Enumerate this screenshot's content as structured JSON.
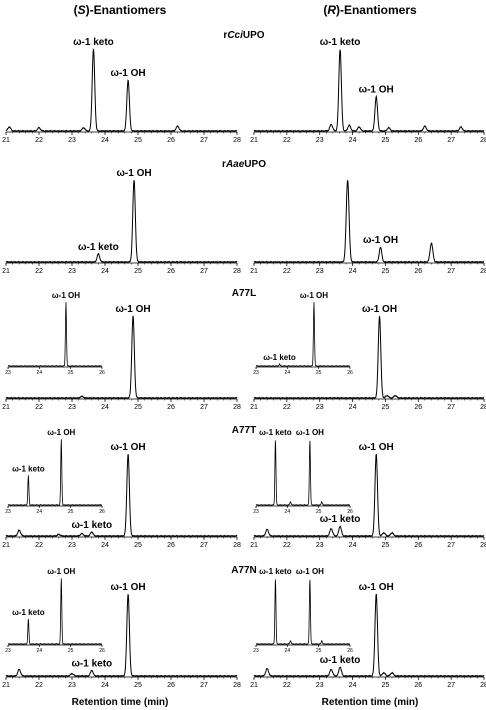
{
  "figure": {
    "left_title": "(S)-Enantiomers",
    "right_title": "(R)-Enantiomers",
    "xlabel": "Retention time (min)",
    "row_labels": [
      "rCciUPO",
      "rAaeUPO",
      "A77L",
      "A77T",
      "A77N"
    ]
  },
  "chart_data": [
    {
      "type": "line",
      "panel": "rCciUPO (S)",
      "x_range": [
        21,
        28
      ],
      "x_ticks": [
        21,
        22,
        23,
        24,
        25,
        26,
        27,
        28
      ],
      "peaks": [
        {
          "x": 21.1,
          "h": 0.05
        },
        {
          "x": 22.0,
          "h": 0.04
        },
        {
          "x": 23.35,
          "h": 0.04
        },
        {
          "x": 23.65,
          "h": 1.0,
          "label": "ω-1 keto"
        },
        {
          "x": 24.7,
          "h": 0.62,
          "label": "ω-1 OH"
        },
        {
          "x": 26.2,
          "h": 0.06
        }
      ]
    },
    {
      "type": "line",
      "panel": "rCciUPO (R)",
      "x_range": [
        21,
        28
      ],
      "x_ticks": [
        21,
        22,
        23,
        24,
        25,
        26,
        27,
        28
      ],
      "peaks": [
        {
          "x": 23.35,
          "h": 0.08
        },
        {
          "x": 23.62,
          "h": 1.0,
          "label": "ω-1 keto"
        },
        {
          "x": 23.9,
          "h": 0.07
        },
        {
          "x": 24.2,
          "h": 0.05
        },
        {
          "x": 24.72,
          "h": 0.42,
          "label": "ω-1 OH"
        },
        {
          "x": 25.1,
          "h": 0.04
        },
        {
          "x": 26.2,
          "h": 0.06
        },
        {
          "x": 27.3,
          "h": 0.05
        }
      ]
    },
    {
      "type": "line",
      "panel": "rAaeUPO (S)",
      "x_range": [
        21,
        28
      ],
      "x_ticks": [
        21,
        22,
        23,
        24,
        25,
        26,
        27,
        28
      ],
      "peaks": [
        {
          "x": 23.8,
          "h": 0.1,
          "label": "ω-1 keto"
        },
        {
          "x": 24.88,
          "h": 1.0,
          "label": "ω-1 OH"
        }
      ]
    },
    {
      "type": "line",
      "panel": "rAaeUPO (R)",
      "x_range": [
        21,
        28
      ],
      "x_ticks": [
        21,
        22,
        23,
        24,
        25,
        26,
        27,
        28
      ],
      "peaks": [
        {
          "x": 23.85,
          "h": 1.0
        },
        {
          "x": 24.85,
          "h": 0.18,
          "label": "ω-1 OH"
        },
        {
          "x": 26.4,
          "h": 0.23
        }
      ]
    },
    {
      "type": "line",
      "panel": "A77L (S)",
      "x_range": [
        21,
        28
      ],
      "x_ticks": [
        21,
        22,
        23,
        24,
        25,
        26,
        27,
        28
      ],
      "peaks": [
        {
          "x": 23.3,
          "h": 0.02
        },
        {
          "x": 24.85,
          "h": 1.0,
          "label": "ω-1 OH"
        }
      ],
      "inset": {
        "x_range": [
          23,
          26
        ],
        "x_ticks": [
          23,
          24,
          25,
          26
        ],
        "peaks": [
          {
            "x": 24.85,
            "h": 1.0,
            "label": "ω-1 OH"
          }
        ]
      }
    },
    {
      "type": "line",
      "panel": "A77L (R)",
      "x_range": [
        21,
        28
      ],
      "x_ticks": [
        21,
        22,
        23,
        24,
        25,
        26,
        27,
        28
      ],
      "peaks": [
        {
          "x": 24.82,
          "h": 1.0,
          "label": "ω-1 OH"
        },
        {
          "x": 25.05,
          "h": 0.03
        },
        {
          "x": 25.3,
          "h": 0.03
        }
      ],
      "inset": {
        "x_range": [
          23,
          26
        ],
        "x_ticks": [
          23,
          24,
          25,
          26
        ],
        "peaks": [
          {
            "x": 23.75,
            "h": 0.03,
            "label": "ω-1 keto"
          },
          {
            "x": 24.85,
            "h": 1.0,
            "label": "ω-1 OH"
          }
        ]
      }
    },
    {
      "type": "line",
      "panel": "A77T (S)",
      "x_range": [
        21,
        28
      ],
      "x_ticks": [
        21,
        22,
        23,
        24,
        25,
        26,
        27,
        28
      ],
      "peaks": [
        {
          "x": 21.4,
          "h": 0.07
        },
        {
          "x": 22.6,
          "h": 0.02
        },
        {
          "x": 23.3,
          "h": 0.03
        },
        {
          "x": 23.6,
          "h": 0.05,
          "label": "ω-1 keto"
        },
        {
          "x": 24.7,
          "h": 1.0,
          "label": "ω-1 OH"
        }
      ],
      "inset": {
        "x_range": [
          23,
          26
        ],
        "x_ticks": [
          23,
          24,
          25,
          26
        ],
        "peaks": [
          {
            "x": 23.65,
            "h": 0.45,
            "label": "ω-1 keto"
          },
          {
            "x": 24.7,
            "h": 1.0,
            "label": "ω-1 OH"
          }
        ]
      }
    },
    {
      "type": "line",
      "panel": "A77T (R)",
      "x_range": [
        21,
        28
      ],
      "x_ticks": [
        21,
        22,
        23,
        24,
        25,
        26,
        27,
        28
      ],
      "peaks": [
        {
          "x": 21.4,
          "h": 0.08
        },
        {
          "x": 23.35,
          "h": 0.09
        },
        {
          "x": 23.62,
          "h": 0.12,
          "label": "ω-1 keto"
        },
        {
          "x": 24.72,
          "h": 1.0,
          "label": "ω-1 OH"
        },
        {
          "x": 24.95,
          "h": 0.04
        },
        {
          "x": 25.2,
          "h": 0.04
        }
      ],
      "inset": {
        "x_range": [
          23,
          26
        ],
        "x_ticks": [
          23,
          24,
          25,
          26
        ],
        "peaks": [
          {
            "x": 23.62,
            "h": 1.0,
            "label": "ω-1 keto"
          },
          {
            "x": 24.1,
            "h": 0.05
          },
          {
            "x": 24.72,
            "h": 1.0,
            "label": "ω-1 OH"
          },
          {
            "x": 25.1,
            "h": 0.05
          }
        ]
      }
    },
    {
      "type": "line",
      "panel": "A77N (S)",
      "x_range": [
        21,
        28
      ],
      "x_ticks": [
        21,
        22,
        23,
        24,
        25,
        26,
        27,
        28
      ],
      "peaks": [
        {
          "x": 21.4,
          "h": 0.08
        },
        {
          "x": 23.0,
          "h": 0.03
        },
        {
          "x": 23.6,
          "h": 0.07,
          "label": "ω-1 keto"
        },
        {
          "x": 24.7,
          "h": 1.0,
          "label": "ω-1 OH"
        }
      ],
      "inset": {
        "x_range": [
          23,
          26
        ],
        "x_ticks": [
          23,
          24,
          25,
          26
        ],
        "peaks": [
          {
            "x": 23.65,
            "h": 0.38,
            "label": "ω-1 keto"
          },
          {
            "x": 24.7,
            "h": 1.0,
            "label": "ω-1 OH"
          }
        ]
      }
    },
    {
      "type": "line",
      "panel": "A77N (R)",
      "x_range": [
        21,
        28
      ],
      "x_ticks": [
        21,
        22,
        23,
        24,
        25,
        26,
        27,
        28
      ],
      "peaks": [
        {
          "x": 21.4,
          "h": 0.09
        },
        {
          "x": 23.35,
          "h": 0.08
        },
        {
          "x": 23.62,
          "h": 0.11,
          "label": "ω-1 keto"
        },
        {
          "x": 24.72,
          "h": 1.0,
          "label": "ω-1 OH"
        },
        {
          "x": 24.95,
          "h": 0.04
        },
        {
          "x": 25.2,
          "h": 0.04
        }
      ],
      "inset": {
        "x_range": [
          23,
          26
        ],
        "x_ticks": [
          23,
          24,
          25,
          26
        ],
        "peaks": [
          {
            "x": 23.62,
            "h": 1.0,
            "label": "ω-1 keto"
          },
          {
            "x": 24.1,
            "h": 0.05
          },
          {
            "x": 24.72,
            "h": 1.0,
            "label": "ω-1 OH"
          },
          {
            "x": 25.1,
            "h": 0.05
          }
        ]
      }
    }
  ]
}
